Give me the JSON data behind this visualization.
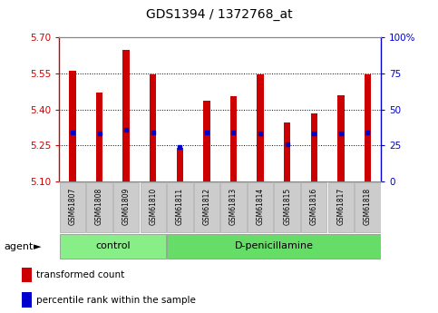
{
  "title": "GDS1394 / 1372768_at",
  "samples": [
    "GSM61807",
    "GSM61808",
    "GSM61809",
    "GSM61810",
    "GSM61811",
    "GSM61812",
    "GSM61813",
    "GSM61814",
    "GSM61815",
    "GSM61816",
    "GSM61817",
    "GSM61818"
  ],
  "bar_values": [
    5.56,
    5.47,
    5.65,
    5.545,
    5.24,
    5.435,
    5.455,
    5.545,
    5.345,
    5.385,
    5.46,
    5.545
  ],
  "percentile_values": [
    5.305,
    5.3,
    5.315,
    5.305,
    5.245,
    5.305,
    5.305,
    5.3,
    5.255,
    5.3,
    5.3,
    5.305
  ],
  "bar_bottom": 5.1,
  "ylim_left": [
    5.1,
    5.7
  ],
  "ylim_right": [
    0,
    100
  ],
  "yticks_left": [
    5.1,
    5.25,
    5.4,
    5.55,
    5.7
  ],
  "yticks_right": [
    0,
    25,
    50,
    75,
    100
  ],
  "bar_color": "#cc0000",
  "percentile_color": "#0000cc",
  "bg_color": "#ffffff",
  "plot_bg": "#ffffff",
  "group_labels": [
    "control",
    "D-penicillamine"
  ],
  "group_ranges": [
    [
      0,
      4
    ],
    [
      4,
      12
    ]
  ],
  "group_colors": [
    "#88ee88",
    "#66dd66"
  ],
  "agent_label": "agent",
  "legend_bar_label": "transformed count",
  "legend_pct_label": "percentile rank within the sample",
  "bar_width": 0.25,
  "grid_linestyle": "dotted",
  "grid_color": "#000000",
  "tick_color_left": "#cc0000",
  "tick_color_right": "#0000cc",
  "xlabel_bg": "#cccccc",
  "grid_ticks": [
    5.25,
    5.4,
    5.55
  ]
}
